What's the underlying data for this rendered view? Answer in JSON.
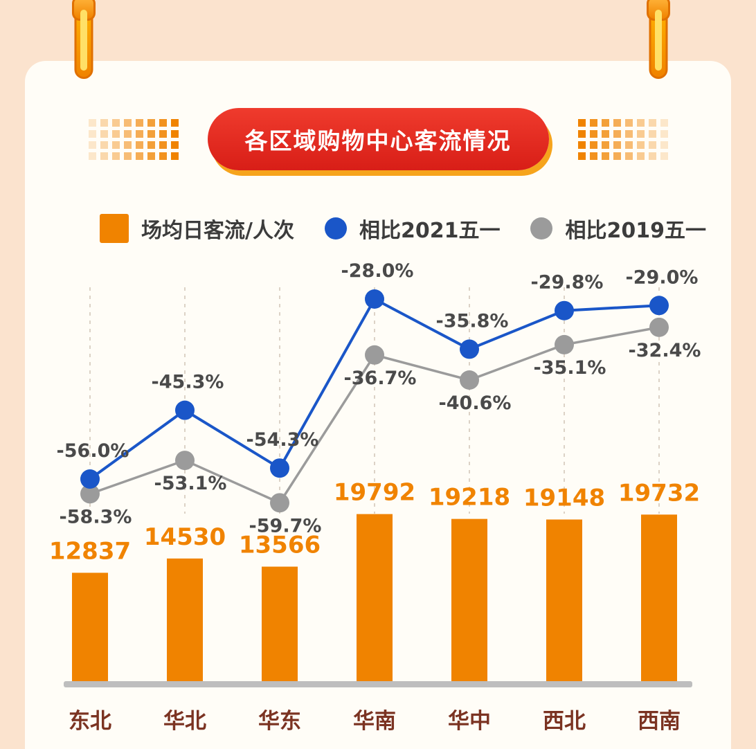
{
  "header": {
    "title": "各区域购物中心客流情况"
  },
  "legend": {
    "items": [
      {
        "label": "场均日客流/人次",
        "swatch": "square",
        "color": "#F08300"
      },
      {
        "label": "相比2021五一",
        "swatch": "circle",
        "color": "#1A56C8"
      },
      {
        "label": "相比2019五一",
        "swatch": "circle",
        "color": "#9B9B9B"
      }
    ]
  },
  "colors": {
    "background": "#FBE3CE",
    "card": "#FFFDF7",
    "banner_red": "#E2261C",
    "banner_gold": "#F6A41C",
    "accent_orange": "#F08300",
    "line_blue": "#1A56C8",
    "line_gray": "#9B9B9B",
    "category_text": "#7B3322"
  },
  "chart_data": {
    "type": "bar",
    "title": "各区域购物中心客流情况",
    "categories": [
      "东北",
      "华北",
      "华东",
      "华南",
      "华中",
      "西北",
      "西南"
    ],
    "series": [
      {
        "name": "场均日客流/人次",
        "chart_type": "bar",
        "color": "#F08300",
        "values": [
          12837,
          14530,
          13566,
          19792,
          19218,
          19148,
          19732
        ]
      },
      {
        "name": "相比2021五一",
        "chart_type": "line",
        "color": "#1A56C8",
        "unit": "%",
        "values": [
          -56.0,
          -45.3,
          -54.3,
          -28.0,
          -35.8,
          -29.8,
          -29.0
        ]
      },
      {
        "name": "相比2019五一",
        "chart_type": "line",
        "color": "#9B9B9B",
        "unit": "%",
        "values": [
          -58.3,
          -53.1,
          -59.7,
          -36.7,
          -40.6,
          -35.1,
          -32.4
        ]
      }
    ],
    "xlabel": "",
    "ylabel": "",
    "grid": "vertical-dashed",
    "legend_position": "top"
  }
}
